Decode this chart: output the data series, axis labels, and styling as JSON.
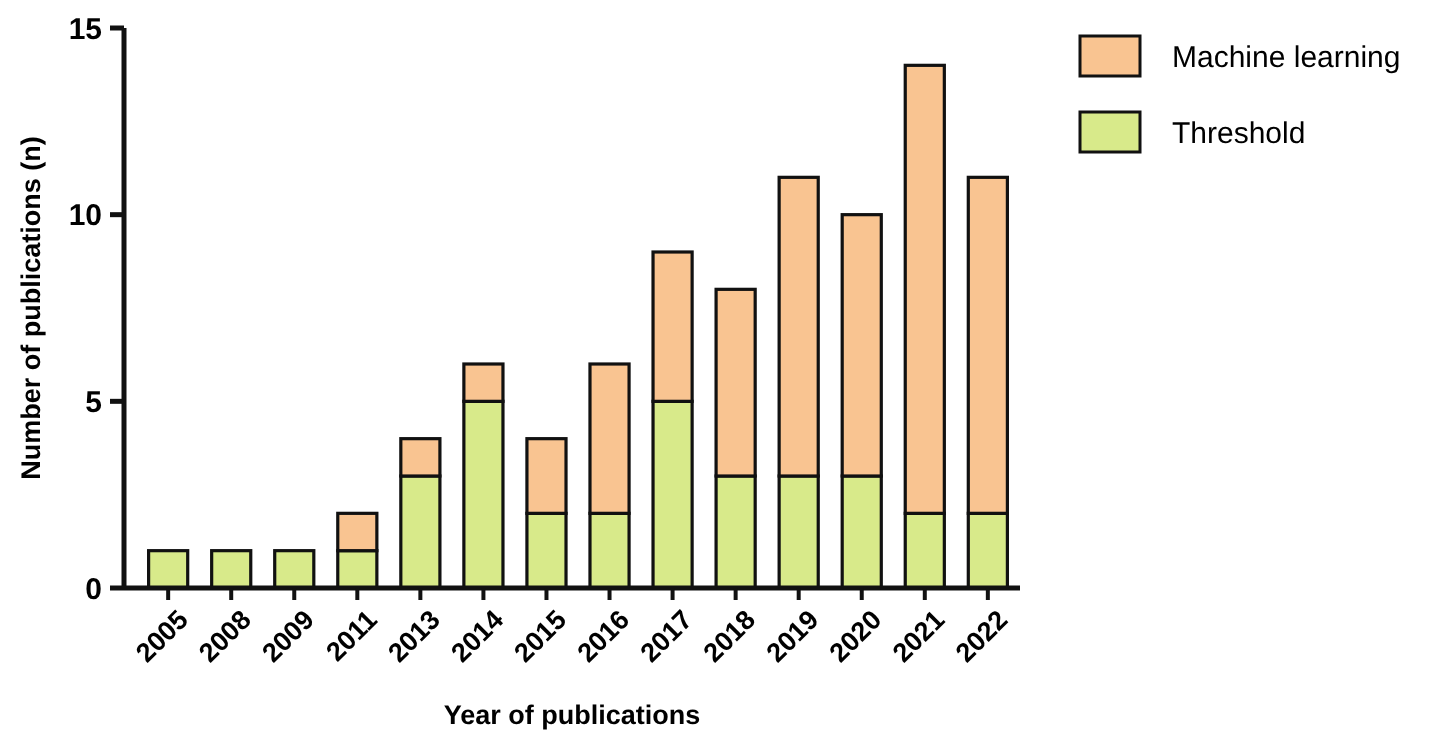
{
  "chart_data": {
    "type": "bar",
    "stacked": true,
    "xlabel": "Year of publications",
    "ylabel": "Number of publications (n)",
    "categories": [
      "2005",
      "2008",
      "2009",
      "2011",
      "2013",
      "2014",
      "2015",
      "2016",
      "2017",
      "2018",
      "2019",
      "2020",
      "2021",
      "2022"
    ],
    "series": [
      {
        "name": "Threshold",
        "color": "#d8ea8a",
        "values": [
          1,
          1,
          1,
          1,
          3,
          5,
          2,
          2,
          5,
          3,
          3,
          3,
          2,
          2
        ]
      },
      {
        "name": "Machine learning",
        "color": "#f9c491",
        "values": [
          0,
          0,
          0,
          1,
          1,
          1,
          2,
          4,
          4,
          5,
          8,
          7,
          12,
          9
        ]
      }
    ],
    "ylim": [
      0,
      15
    ],
    "yticks": [
      0,
      5,
      10,
      15
    ],
    "grid": false,
    "legend": "top right"
  }
}
